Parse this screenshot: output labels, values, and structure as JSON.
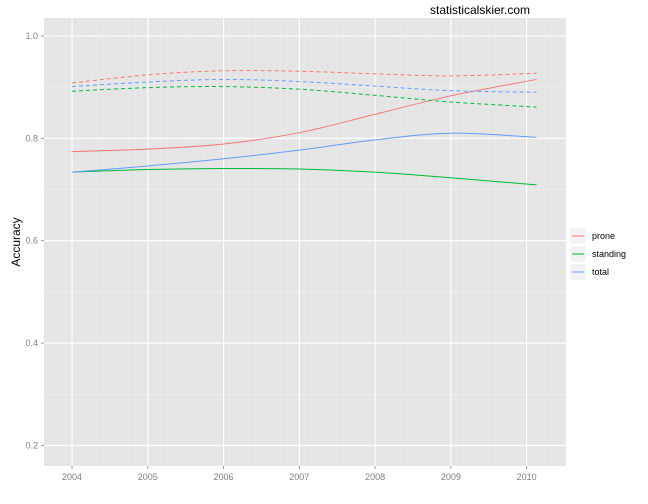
{
  "chart_data": {
    "type": "line",
    "watermark": "statisticalskier.com",
    "ylabel": "Accuracy",
    "xlabel": "",
    "xlim": [
      2003.63,
      2010.52
    ],
    "ylim": [
      0.16,
      1.035
    ],
    "x_ticks": [
      "2004",
      "2005",
      "2006",
      "2007",
      "2008",
      "2009",
      "2010"
    ],
    "y_ticks": [
      "0.2",
      "0.4",
      "0.6",
      "0.8",
      "1.0"
    ],
    "grid": true,
    "legend_position": "right",
    "colors": {
      "prone": "#F8766D",
      "standing": "#00BA38",
      "total": "#619CFF"
    },
    "series": [
      {
        "name": "prone",
        "style": "solid",
        "x": [
          2004,
          2005,
          2006,
          2007,
          2008,
          2009,
          2010.13
        ],
        "y": [
          0.774,
          0.779,
          0.789,
          0.811,
          0.847,
          0.883,
          0.915
        ]
      },
      {
        "name": "standing",
        "style": "solid",
        "x": [
          2004,
          2005,
          2006,
          2007,
          2008,
          2009,
          2010.13
        ],
        "y": [
          0.734,
          0.739,
          0.741,
          0.74,
          0.734,
          0.723,
          0.709
        ]
      },
      {
        "name": "total",
        "style": "solid",
        "x": [
          2004,
          2005,
          2006,
          2007,
          2008,
          2009,
          2010.13
        ],
        "y": [
          0.734,
          0.746,
          0.76,
          0.777,
          0.797,
          0.81,
          0.802
        ]
      },
      {
        "name": "prone",
        "style": "dashed",
        "x": [
          2004,
          2005,
          2006,
          2007,
          2008,
          2009,
          2010.13
        ],
        "y": [
          0.908,
          0.924,
          0.932,
          0.931,
          0.926,
          0.922,
          0.927
        ]
      },
      {
        "name": "total",
        "style": "dashed",
        "x": [
          2004,
          2005,
          2006,
          2007,
          2008,
          2009,
          2010.13
        ],
        "y": [
          0.901,
          0.91,
          0.915,
          0.911,
          0.902,
          0.893,
          0.89
        ]
      },
      {
        "name": "standing",
        "style": "dashed",
        "x": [
          2004,
          2005,
          2006,
          2007,
          2008,
          2009,
          2010.13
        ],
        "y": [
          0.892,
          0.899,
          0.901,
          0.896,
          0.884,
          0.871,
          0.861
        ]
      }
    ],
    "legend": [
      {
        "label": "prone",
        "key": "prone"
      },
      {
        "label": "standing",
        "key": "standing"
      },
      {
        "label": "total",
        "key": "total"
      }
    ]
  }
}
